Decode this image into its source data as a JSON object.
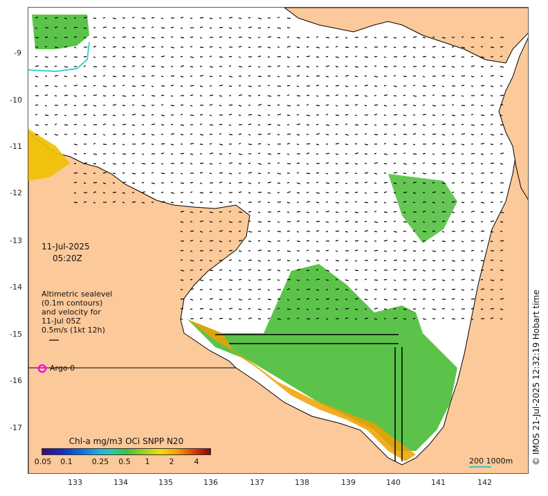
{
  "colors": {
    "land": "#fcc99a",
    "chl_low": "#40b82a",
    "chl_mid": "#f0c000",
    "chl_high": "#d04000",
    "argo": "#ff00ff",
    "vector": "#000000",
    "contour": "#40d0d0"
  },
  "date": "11-Jul-2025",
  "time": "05:20Z",
  "legend_text": [
    "Altimetric sealevel",
    "(0.1m contours)",
    "and velocity for",
    "11-Jul 05Z",
    "0.5m/s (1kt 12h)"
  ],
  "argo_label": "Argo 0",
  "credit": "© IMOS 21-Jul-2025 12:32:19 Hobart time",
  "colorbar": {
    "title": "Chl-a mg/m3 OCi SNPP N20",
    "ticks": [
      "0.05",
      "0.1",
      "0.25",
      "0.5",
      "1",
      "2",
      "4"
    ]
  },
  "scale_label": "200  1000m",
  "lon_ticks": [
    "133",
    "134",
    "135",
    "136",
    "137",
    "138",
    "139",
    "140",
    "141",
    "142"
  ],
  "lat_ticks": [
    "-9",
    "-10",
    "-11",
    "-12",
    "-13",
    "-14",
    "-15",
    "-16",
    "-17"
  ]
}
